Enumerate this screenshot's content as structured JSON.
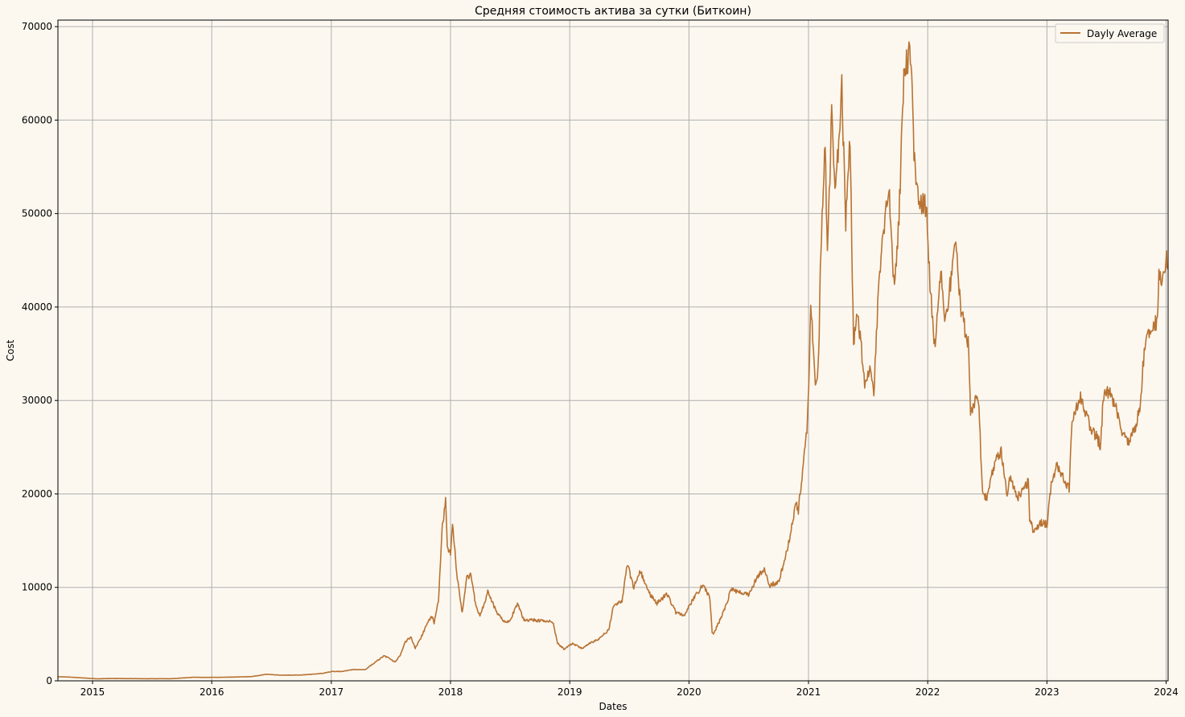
{
  "chart_data": {
    "type": "line",
    "title": "Средняя стоимость актива за сутки (Биткоин)",
    "xlabel": "Dates",
    "ylabel": "Cost",
    "x_ticks": [
      "2015",
      "2016",
      "2017",
      "2018",
      "2019",
      "2020",
      "2021",
      "2022",
      "2023",
      "2024"
    ],
    "y_ticks": [
      0,
      10000,
      20000,
      30000,
      40000,
      50000,
      60000,
      70000
    ],
    "ylim": [
      0,
      70700
    ],
    "xlim": [
      "2014-09-17",
      "2024-01-07"
    ],
    "grid": true,
    "legend_position": "top-right",
    "colors": {
      "line": "#b87333",
      "background": "#fcf8f0",
      "grid": "#b0b0b0"
    },
    "series": [
      {
        "name": "Dayly Average",
        "x": [
          "2014-09-17",
          "2014-11-01",
          "2015-01-14",
          "2015-03-01",
          "2015-06-01",
          "2015-09-01",
          "2015-11-04",
          "2015-12-01",
          "2016-02-01",
          "2016-05-01",
          "2016-06-17",
          "2016-08-01",
          "2016-10-01",
          "2016-12-01",
          "2017-01-04",
          "2017-02-01",
          "2017-03-10",
          "2017-04-15",
          "2017-05-20",
          "2017-06-12",
          "2017-07-16",
          "2017-08-01",
          "2017-08-16",
          "2017-09-02",
          "2017-09-15",
          "2017-10-01",
          "2017-10-20",
          "2017-11-07",
          "2017-11-12",
          "2017-11-25",
          "2017-12-07",
          "2017-12-17",
          "2017-12-22",
          "2018-01-01",
          "2018-01-07",
          "2018-01-20",
          "2018-02-06",
          "2018-02-20",
          "2018-03-05",
          "2018-03-18",
          "2018-04-01",
          "2018-04-25",
          "2018-05-20",
          "2018-06-10",
          "2018-06-30",
          "2018-07-25",
          "2018-08-14",
          "2018-09-10",
          "2018-10-20",
          "2018-11-10",
          "2018-11-25",
          "2018-12-15",
          "2019-01-10",
          "2019-02-08",
          "2019-02-24",
          "2019-04-02",
          "2019-05-01",
          "2019-05-14",
          "2019-06-10",
          "2019-06-26",
          "2019-07-16",
          "2019-08-05",
          "2019-08-28",
          "2019-09-25",
          "2019-10-26",
          "2019-11-22",
          "2019-12-17",
          "2020-01-14",
          "2020-02-13",
          "2020-03-05",
          "2020-03-12",
          "2020-03-16",
          "2020-04-10",
          "2020-04-29",
          "2020-05-09",
          "2020-06-01",
          "2020-07-01",
          "2020-07-27",
          "2020-08-17",
          "2020-09-05",
          "2020-10-01",
          "2020-10-21",
          "2020-11-05",
          "2020-11-24",
          "2020-12-01",
          "2020-12-16",
          "2020-12-27",
          "2021-01-02",
          "2021-01-08",
          "2021-01-22",
          "2021-02-01",
          "2021-02-08",
          "2021-02-21",
          "2021-02-28",
          "2021-03-13",
          "2021-03-25",
          "2021-04-13",
          "2021-04-25",
          "2021-05-08",
          "2021-05-19",
          "2021-06-01",
          "2021-06-12",
          "2021-06-22",
          "2021-07-06",
          "2021-07-20",
          "2021-08-01",
          "2021-08-13",
          "2021-08-23",
          "2021-09-06",
          "2021-09-21",
          "2021-10-05",
          "2021-10-20",
          "2021-11-09",
          "2021-11-20",
          "2021-12-04",
          "2021-12-27",
          "2022-01-10",
          "2022-01-22",
          "2022-02-10",
          "2022-02-24",
          "2022-03-28",
          "2022-04-11",
          "2022-05-05",
          "2022-05-12",
          "2022-06-05",
          "2022-06-18",
          "2022-07-01",
          "2022-07-29",
          "2022-08-14",
          "2022-09-01",
          "2022-09-12",
          "2022-10-01",
          "2022-11-05",
          "2022-11-09",
          "2022-11-21",
          "2022-12-15",
          "2023-01-01",
          "2023-01-14",
          "2023-02-01",
          "2023-03-10",
          "2023-03-19",
          "2023-04-14",
          "2023-05-10",
          "2023-06-15",
          "2023-06-22",
          "2023-07-13",
          "2023-08-01",
          "2023-08-17",
          "2023-09-11",
          "2023-10-01",
          "2023-10-16",
          "2023-10-24",
          "2023-11-10",
          "2023-12-05",
          "2023-12-10",
          "2023-12-20",
          "2024-01-02",
          "2024-01-07"
        ],
        "values": [
          450,
          380,
          220,
          250,
          230,
          230,
          380,
          370,
          380,
          450,
          700,
          600,
          620,
          780,
          1000,
          1000,
          1200,
          1200,
          2100,
          2700,
          2000,
          2800,
          4200,
          4700,
          3500,
          4500,
          6000,
          7000,
          6200,
          8500,
          16500,
          19400,
          14500,
          13500,
          17000,
          11500,
          7200,
          11000,
          11300,
          8300,
          6900,
          9500,
          7500,
          6500,
          6300,
          8200,
          6500,
          6500,
          6400,
          6300,
          4000,
          3400,
          4000,
          3450,
          3900,
          4500,
          5500,
          8000,
          8500,
          12500,
          10000,
          11800,
          9600,
          8300,
          9300,
          7300,
          7000,
          8700,
          10300,
          8800,
          5200,
          5000,
          6900,
          8700,
          9800,
          9500,
          9200,
          11000,
          12000,
          10200,
          10600,
          13000,
          15500,
          19200,
          18200,
          23300,
          26500,
          32000,
          40300,
          31000,
          34500,
          46500,
          57000,
          45500,
          60800,
          52300,
          63500,
          49000,
          58500,
          36000,
          39500,
          35500,
          32000,
          33500,
          30500,
          40000,
          46500,
          49500,
          52000,
          41500,
          49500,
          65000,
          67500,
          57000,
          51000,
          50800,
          41500,
          35800,
          44000,
          38000,
          47500,
          40000,
          36000,
          29000,
          30500,
          20000,
          19500,
          24000,
          24500,
          20000,
          22000,
          19500,
          21300,
          17500,
          16000,
          17000,
          16700,
          21000,
          23000,
          20500,
          27800,
          30500,
          27500,
          25200,
          30600,
          31000,
          29200,
          26300,
          25600,
          27500,
          30000,
          34500,
          37500,
          38500,
          44000,
          42000,
          45000,
          44000
        ]
      }
    ]
  }
}
